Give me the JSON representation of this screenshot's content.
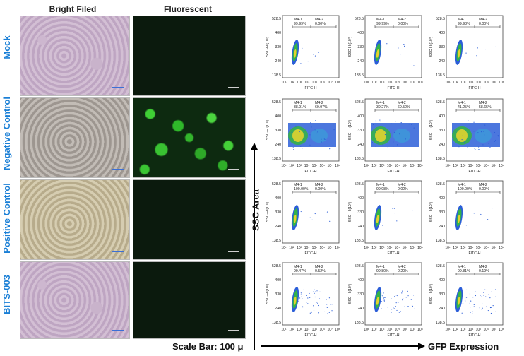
{
  "headers": {
    "bright": "Bright Filed",
    "fluor": "Fluorescent"
  },
  "rows": [
    {
      "label": "Mock"
    },
    {
      "label": "Negative Control"
    },
    {
      "label": "Positive Control"
    },
    {
      "label": "BITS-003"
    }
  ],
  "scale_bar": "Scale Bar: 100 μ",
  "y_axis_title": "SSC Area",
  "x_axis_title": "GFP Expression",
  "flow_axis": {
    "ylabel": "SSC-H (10³)",
    "xlabel": "FITC-H",
    "yticks": [
      "528.5",
      "400",
      "330",
      "240",
      "138.5"
    ],
    "xticks": [
      "10¹",
      "10²",
      "10³",
      "10⁴",
      "10⁵",
      "10⁶",
      "10⁷",
      "10⁸"
    ]
  },
  "chart_data": [
    {
      "type": "scatter",
      "row": "Mock",
      "m41": "99.99%",
      "m42": "0.00%"
    },
    {
      "type": "scatter",
      "row": "Mock",
      "m41": "99.99%",
      "m42": "0.00%"
    },
    {
      "type": "scatter",
      "row": "Mock",
      "m41": "99.98%",
      "m42": "0.00%"
    },
    {
      "type": "scatter",
      "row": "Negative Control",
      "m41": "38.91%",
      "m42": "60.97%"
    },
    {
      "type": "scatter",
      "row": "Negative Control",
      "m41": "39.27%",
      "m42": "60.52%"
    },
    {
      "type": "scatter",
      "row": "Negative Control",
      "m41": "41.25%",
      "m42": "58.65%"
    },
    {
      "type": "scatter",
      "row": "Positive Control",
      "m41": "100.00%",
      "m42": "0.00%"
    },
    {
      "type": "scatter",
      "row": "Positive Control",
      "m41": "99.98%",
      "m42": "0.02%"
    },
    {
      "type": "scatter",
      "row": "Positive Control",
      "m41": "100.00%",
      "m42": "0.00%"
    },
    {
      "type": "scatter",
      "row": "BITS-003",
      "m41": "99.47%",
      "m42": "0.52%"
    },
    {
      "type": "scatter",
      "row": "BITS-003",
      "m41": "99.80%",
      "m42": "0.20%"
    },
    {
      "type": "scatter",
      "row": "BITS-003",
      "m41": "99.81%",
      "m42": "0.19%"
    }
  ],
  "gate_labels": {
    "m41": "M4-1",
    "m42": "M4-2"
  }
}
